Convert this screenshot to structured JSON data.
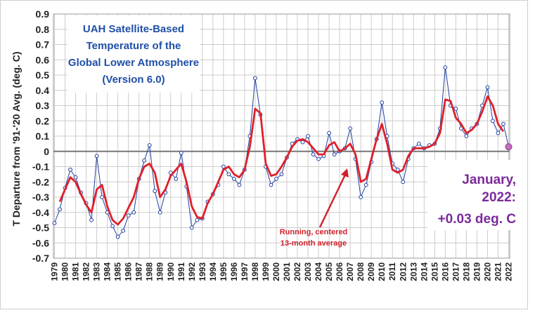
{
  "chart_data": {
    "type": "line",
    "title_lines": [
      "UAH Satellite-Based",
      "Temperature of the",
      "Global Lower Atmosphere",
      "(Version 6.0)"
    ],
    "ylabel": "T Departure from '91-'20 Avg. (deg. C)",
    "xlabel": "",
    "ylim": [
      -0.7,
      0.9
    ],
    "xlim": [
      1978.9,
      2022.1
    ],
    "y_ticks": [
      "-0.7",
      "-0.6",
      "-0.5",
      "-0.4",
      "-0.3",
      "-0.2",
      "-0.1",
      "0",
      "0.1",
      "0.2",
      "0.3",
      "0.4",
      "0.5",
      "0.6",
      "0.7",
      "0.8",
      "0.9"
    ],
    "x_ticks": [
      "1979",
      "1980",
      "1981",
      "1982",
      "1983",
      "1984",
      "1985",
      "1986",
      "1987",
      "1988",
      "1989",
      "1990",
      "1991",
      "1992",
      "1993",
      "1994",
      "1995",
      "1996",
      "1997",
      "1998",
      "1999",
      "2000",
      "2001",
      "2002",
      "2003",
      "2004",
      "2005",
      "2006",
      "2007",
      "2008",
      "2009",
      "2010",
      "2011",
      "2012",
      "2013",
      "2014",
      "2015",
      "2016",
      "2017",
      "2018",
      "2019",
      "2020",
      "2021",
      "2022"
    ],
    "grid": true,
    "series": [
      {
        "name": "",
        "kind": "monthly",
        "color": "#1f3f9f",
        "x": [
          1979.0,
          1979.5,
          1980.0,
          1980.5,
          1981.0,
          1981.5,
          1982.0,
          1982.5,
          1983.0,
          1983.5,
          1984.0,
          1984.5,
          1985.0,
          1985.5,
          1986.0,
          1986.5,
          1987.0,
          1987.5,
          1988.0,
          1988.5,
          1989.0,
          1989.5,
          1990.0,
          1990.5,
          1991.0,
          1991.5,
          1992.0,
          1992.5,
          1993.0,
          1993.5,
          1994.0,
          1994.5,
          1995.0,
          1995.5,
          1996.0,
          1996.5,
          1997.0,
          1997.5,
          1998.0,
          1998.5,
          1999.0,
          1999.5,
          2000.0,
          2000.5,
          2001.0,
          2001.5,
          2002.0,
          2002.5,
          2003.0,
          2003.5,
          2004.0,
          2004.5,
          2005.0,
          2005.5,
          2006.0,
          2006.5,
          2007.0,
          2007.5,
          2008.0,
          2008.5,
          2009.0,
          2009.5,
          2010.0,
          2010.5,
          2011.0,
          2011.5,
          2012.0,
          2012.5,
          2013.0,
          2013.5,
          2014.0,
          2014.5,
          2015.0,
          2015.5,
          2016.0,
          2016.5,
          2017.0,
          2017.5,
          2018.0,
          2018.5,
          2019.0,
          2019.5,
          2020.0,
          2020.5,
          2021.0,
          2021.5,
          2022.0
        ],
        "values": [
          -0.47,
          -0.38,
          -0.24,
          -0.12,
          -0.17,
          -0.27,
          -0.34,
          -0.45,
          -0.03,
          -0.3,
          -0.4,
          -0.49,
          -0.56,
          -0.52,
          -0.42,
          -0.4,
          -0.18,
          -0.06,
          0.04,
          -0.26,
          -0.4,
          -0.27,
          -0.14,
          -0.18,
          -0.01,
          -0.23,
          -0.5,
          -0.45,
          -0.44,
          -0.33,
          -0.28,
          -0.22,
          -0.1,
          -0.15,
          -0.18,
          -0.22,
          -0.12,
          0.1,
          0.48,
          0.24,
          -0.1,
          -0.22,
          -0.18,
          -0.15,
          -0.04,
          0.05,
          0.08,
          0.06,
          0.1,
          -0.02,
          -0.05,
          -0.03,
          0.12,
          -0.02,
          0.0,
          0.02,
          0.15,
          -0.05,
          -0.3,
          -0.22,
          -0.07,
          0.08,
          0.32,
          0.1,
          -0.08,
          -0.12,
          -0.2,
          -0.05,
          0.02,
          0.05,
          0.02,
          0.04,
          0.05,
          0.15,
          0.55,
          0.3,
          0.28,
          0.15,
          0.1,
          0.15,
          0.18,
          0.3,
          0.42,
          0.2,
          0.12,
          0.18,
          0.03
        ]
      },
      {
        "name": "Running, centered 13-month average",
        "kind": "running",
        "color": "#e0202a",
        "x": [
          1979.5,
          1980.0,
          1980.5,
          1981.0,
          1981.5,
          1982.0,
          1982.5,
          1983.0,
          1983.5,
          1984.0,
          1984.5,
          1985.0,
          1985.5,
          1986.0,
          1986.5,
          1987.0,
          1987.5,
          1988.0,
          1988.5,
          1989.0,
          1989.5,
          1990.0,
          1990.5,
          1991.0,
          1991.5,
          1992.0,
          1992.5,
          1993.0,
          1993.5,
          1994.0,
          1994.5,
          1995.0,
          1995.5,
          1996.0,
          1996.5,
          1997.0,
          1997.5,
          1998.0,
          1998.5,
          1999.0,
          1999.5,
          2000.0,
          2000.5,
          2001.0,
          2001.5,
          2002.0,
          2002.5,
          2003.0,
          2003.5,
          2004.0,
          2004.5,
          2005.0,
          2005.5,
          2006.0,
          2006.5,
          2007.0,
          2007.5,
          2008.0,
          2008.5,
          2009.0,
          2009.5,
          2010.0,
          2010.5,
          2011.0,
          2011.5,
          2012.0,
          2012.5,
          2013.0,
          2013.5,
          2014.0,
          2014.5,
          2015.0,
          2015.5,
          2016.0,
          2016.5,
          2017.0,
          2017.5,
          2018.0,
          2018.5,
          2019.0,
          2019.5,
          2020.0,
          2020.5,
          2021.0,
          2021.5
        ],
        "values": [
          -0.33,
          -0.25,
          -0.17,
          -0.2,
          -0.28,
          -0.35,
          -0.4,
          -0.25,
          -0.22,
          -0.36,
          -0.45,
          -0.48,
          -0.44,
          -0.37,
          -0.3,
          -0.18,
          -0.1,
          -0.08,
          -0.14,
          -0.3,
          -0.25,
          -0.16,
          -0.12,
          -0.08,
          -0.2,
          -0.36,
          -0.43,
          -0.44,
          -0.34,
          -0.28,
          -0.2,
          -0.12,
          -0.1,
          -0.15,
          -0.17,
          -0.12,
          0.03,
          0.28,
          0.25,
          -0.08,
          -0.16,
          -0.15,
          -0.1,
          -0.04,
          0.03,
          0.07,
          0.08,
          0.06,
          0.02,
          -0.02,
          -0.02,
          0.04,
          0.06,
          0.0,
          0.02,
          0.05,
          -0.02,
          -0.2,
          -0.18,
          -0.05,
          0.08,
          0.18,
          0.05,
          -0.12,
          -0.14,
          -0.12,
          -0.03,
          0.02,
          0.02,
          0.02,
          0.03,
          0.05,
          0.12,
          0.34,
          0.33,
          0.22,
          0.18,
          0.12,
          0.14,
          0.18,
          0.26,
          0.36,
          0.3,
          0.18,
          0.13
        ]
      }
    ],
    "annotations": {
      "running_label_lines": [
        "Running, centered",
        "13-month average"
      ],
      "latest_value_lines": [
        "January,",
        "2022:",
        "+0.03 deg. C"
      ],
      "latest_point": {
        "x": 2022.0,
        "y": 0.03
      }
    }
  },
  "colors": {
    "title": "#1f4fa8",
    "monthly": "#1f3f9f",
    "running": "#e0202a",
    "annotation_running": "#d0202a",
    "annotation_latest": "#7a2a9a",
    "latest_marker": "#c070c0",
    "zero_line": "#777777",
    "grid": "#cccccc"
  }
}
